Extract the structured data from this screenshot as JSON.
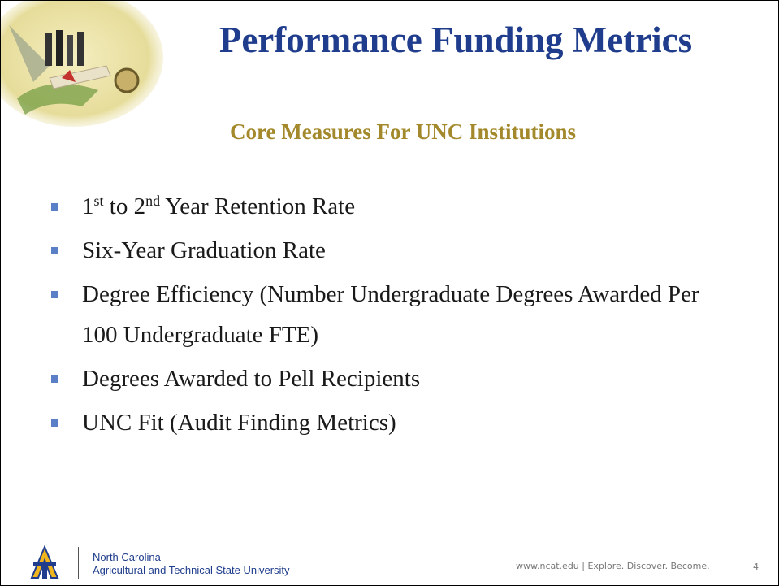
{
  "slide": {
    "title": "Performance Funding Metrics",
    "subtitle": "Core Measures For UNC Institutions",
    "bullets": [
      {
        "segments": [
          {
            "text": "1"
          },
          {
            "sup": "st"
          },
          {
            "text": " to 2"
          },
          {
            "sup": "nd"
          },
          {
            "text": " Year Retention Rate"
          }
        ]
      },
      {
        "segments": [
          {
            "text": "Six-Year  Graduation Rate"
          }
        ]
      },
      {
        "segments": [
          {
            "text": "Degree Efficiency (Number Undergraduate Degrees Awarded Per 100 Undergraduate FTE)"
          }
        ]
      },
      {
        "segments": [
          {
            "text": "Degrees Awarded to Pell Recipients"
          }
        ]
      },
      {
        "segments": [
          {
            "text": "UNC Fit (Audit Finding Metrics)"
          }
        ]
      }
    ],
    "footer": {
      "university_line1": "North Carolina",
      "university_line2": "Agricultural and Technical State University",
      "tagline": "www.ncat.edu | Explore. Discover. Become.",
      "page_number": 4
    }
  }
}
